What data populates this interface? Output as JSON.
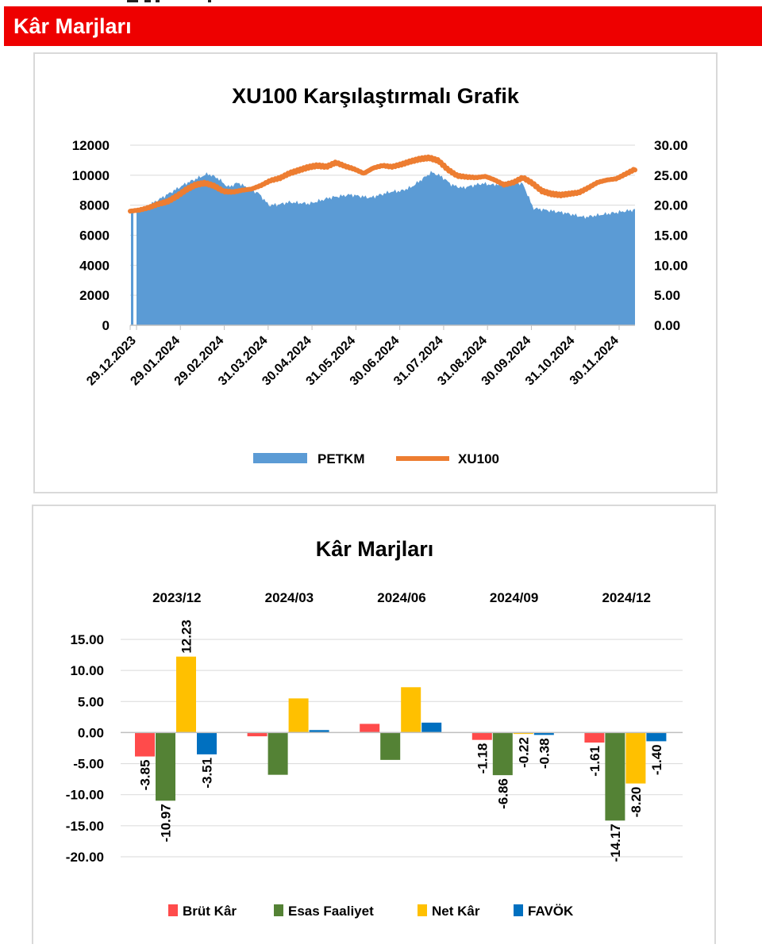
{
  "header": {
    "title": "Kâr Marjları"
  },
  "chart_data": [
    {
      "type": "area",
      "title": "XU100 Karşılaştırmalı  Grafik",
      "x_tick_labels": [
        "29.12.2023",
        "29.01.2024",
        "29.02.2024",
        "31.03.2024",
        "30.04.2024",
        "31.05.2024",
        "30.06.2024",
        "31.07.2024",
        "31.08.2024",
        "30.09.2024",
        "31.10.2024",
        "30.11.2024"
      ],
      "y_left": {
        "range": [
          0,
          12000
        ],
        "ticks": [
          "0",
          "2000",
          "4000",
          "6000",
          "8000",
          "10000",
          "12000"
        ]
      },
      "y_right": {
        "range": [
          0,
          30
        ],
        "ticks": [
          "0.00",
          "5.00",
          "10.00",
          "15.00",
          "20.00",
          "25.00",
          "30.00"
        ]
      },
      "series": [
        {
          "name": "PETKM",
          "type": "area",
          "axis": "left",
          "color": "#5b9bd5",
          "values": [
            7600,
            7900,
            8300,
            8700,
            9100,
            9500,
            9800,
            10100,
            9800,
            9200,
            9500,
            9100,
            8800,
            8000,
            8050,
            8200,
            8150,
            8100,
            8300,
            8500,
            8600,
            8700,
            8600,
            8500,
            8700,
            8900,
            8950,
            9200,
            9700,
            10200,
            9900,
            9350,
            9150,
            9300,
            9450,
            9350,
            9450,
            9550,
            9400,
            7800,
            7700,
            7600,
            7500,
            7350,
            7200,
            7300,
            7400,
            7500,
            7600,
            7700
          ]
        },
        {
          "name": "XU100",
          "type": "line",
          "axis": "right",
          "color": "#ed7d31",
          "values": [
            19.0,
            19.2,
            19.6,
            20.2,
            20.6,
            21.5,
            22.6,
            23.4,
            23.7,
            23.2,
            22.3,
            22.2,
            22.5,
            22.7,
            23.3,
            24.1,
            24.5,
            25.3,
            25.8,
            26.3,
            26.6,
            26.4,
            27.1,
            26.5,
            26.0,
            25.3,
            26.2,
            26.6,
            26.4,
            26.8,
            27.3,
            27.7,
            27.9,
            27.4,
            25.9,
            24.9,
            24.7,
            24.6,
            24.8,
            24.2,
            23.4,
            23.8,
            24.6,
            23.7,
            22.4,
            21.9,
            21.7,
            21.9,
            22.1,
            22.9,
            23.8,
            24.2,
            24.4,
            25.2,
            26.0
          ]
        }
      ],
      "legend": [
        "PETKM",
        "XU100"
      ]
    },
    {
      "type": "bar",
      "title": "Kâr  Marjları",
      "categories": [
        "2023/12",
        "2024/03",
        "2024/06",
        "2024/09",
        "2024/12"
      ],
      "y_range": [
        -20,
        15
      ],
      "y_ticks": [
        "15.00",
        "10.00",
        "5.00",
        "0.00",
        "-5.00",
        "-10.00",
        "-15.00",
        "-20.00"
      ],
      "series": [
        {
          "name": "Brüt Kâr",
          "color": "#ff4b4b",
          "values": [
            -3.85,
            -0.6,
            1.4,
            -1.18,
            -1.61
          ],
          "labels": [
            "-3.85",
            "",
            "",
            "-1.18",
            "-1.61"
          ]
        },
        {
          "name": "Esas Faaliyet",
          "color": "#548235",
          "values": [
            -10.97,
            -6.8,
            -4.4,
            -6.86,
            -14.17
          ],
          "labels": [
            "-10.97",
            "",
            "",
            "-6.86",
            "-14.17"
          ]
        },
        {
          "name": "Net Kâr",
          "color": "#ffc000",
          "values": [
            12.23,
            5.5,
            7.3,
            -0.22,
            -8.2
          ],
          "labels": [
            "12.23",
            "",
            "",
            "-0.22",
            "-8.20"
          ]
        },
        {
          "name": "FAVÖK",
          "color": "#0070c0",
          "values": [
            -3.51,
            0.4,
            1.6,
            -0.38,
            -1.4
          ],
          "labels": [
            "-3.51",
            "",
            "",
            "-0.38",
            "-1.40"
          ]
        }
      ]
    }
  ]
}
